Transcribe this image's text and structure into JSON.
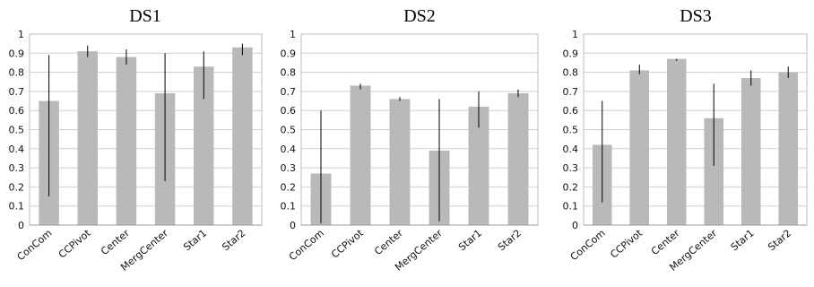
{
  "colors": {
    "bar": "#b9b9b9",
    "error_bar": "#000000",
    "grid": "#cfcfcf"
  },
  "chart_data": [
    {
      "type": "bar",
      "title": "DS1",
      "categories": [
        "ConCom",
        "CCPivot",
        "Center",
        "MergCenter",
        "Star1",
        "Star2"
      ],
      "values": [
        0.65,
        0.91,
        0.88,
        0.69,
        0.83,
        0.93
      ],
      "error_low": [
        0.15,
        0.88,
        0.84,
        0.23,
        0.66,
        0.89
      ],
      "error_high": [
        0.89,
        0.94,
        0.92,
        0.9,
        0.91,
        0.95
      ],
      "ylim": [
        0,
        1
      ],
      "yticks": [
        "0",
        "0.1",
        "0.2",
        "0.3",
        "0.4",
        "0.5",
        "0.6",
        "0.7",
        "0.8",
        "0.9",
        "1"
      ],
      "grid": true
    },
    {
      "type": "bar",
      "title": "DS2",
      "categories": [
        "ConCom",
        "CCPivot",
        "Center",
        "MergCenter",
        "Star1",
        "Star2"
      ],
      "values": [
        0.27,
        0.73,
        0.66,
        0.39,
        0.62,
        0.69
      ],
      "error_low": [
        0.01,
        0.71,
        0.65,
        0.02,
        0.51,
        0.67
      ],
      "error_high": [
        0.6,
        0.74,
        0.67,
        0.66,
        0.7,
        0.71
      ],
      "ylim": [
        0,
        1
      ],
      "yticks": [
        "0",
        "0.1",
        "0.2",
        "0.3",
        "0.4",
        "0.5",
        "0.6",
        "0.7",
        "0.8",
        "0.9",
        "1"
      ],
      "grid": true
    },
    {
      "type": "bar",
      "title": "DS3",
      "categories": [
        "ConCom",
        "CCPivot",
        "Center",
        "MergCenter",
        "Star1",
        "Star2"
      ],
      "values": [
        0.42,
        0.81,
        0.87,
        0.56,
        0.77,
        0.8
      ],
      "error_low": [
        0.12,
        0.79,
        0.86,
        0.31,
        0.73,
        0.77
      ],
      "error_high": [
        0.65,
        0.84,
        0.87,
        0.74,
        0.81,
        0.83
      ],
      "ylim": [
        0,
        1
      ],
      "yticks": [
        "0",
        "0.1",
        "0.2",
        "0.3",
        "0.4",
        "0.5",
        "0.6",
        "0.7",
        "0.8",
        "0.9",
        "1"
      ],
      "grid": true
    }
  ]
}
